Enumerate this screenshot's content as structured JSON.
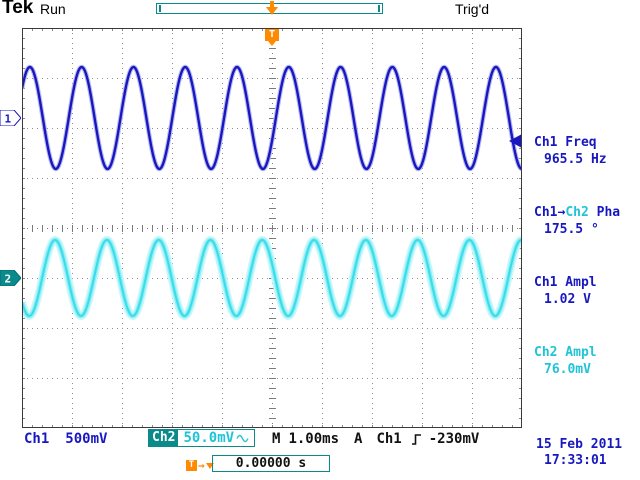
{
  "header": {
    "logo": "Tek",
    "acq_status": "Run",
    "trigger_status": "Trig'd"
  },
  "trigger": {
    "marker": "T"
  },
  "channels": {
    "ch1": {
      "tag": "1"
    },
    "ch2": {
      "tag": "2"
    }
  },
  "measurements": {
    "m1": {
      "label": "Ch1 Freq",
      "value": "965.5 Hz"
    },
    "m2": {
      "src1": "Ch1",
      "arrow": "→",
      "src2": "Ch2",
      "suffix": " Pha",
      "value": "175.5 °"
    },
    "m3": {
      "label": "Ch1 Ampl",
      "value": "1.02 V"
    },
    "m4": {
      "label": "Ch2 Ampl",
      "value": "76.0mV"
    }
  },
  "statusbar": {
    "ch1_label": "Ch1",
    "ch1_scale": "500mV",
    "ch2_label": "Ch2",
    "ch2_scale": "50.0mV",
    "timebase_label": "M",
    "timebase": "1.00ms",
    "trig_label": "A",
    "trig_source": "Ch1",
    "trig_level": "-230mV",
    "date": "15 Feb 2011",
    "time": "17:33:01",
    "delay_marker": "T",
    "delay_arrow": "→",
    "delay_value": "0.00000 s"
  },
  "colors": {
    "ch1": "#1818c0",
    "ch2": "#38dcea",
    "ch2_text": "#20c4d6",
    "teal": "#0a8a8a",
    "orange": "#ff8a00",
    "grid": "#909090"
  },
  "chart_data": {
    "type": "line",
    "title": "",
    "grid": true,
    "x_divisions": 10,
    "y_divisions": 8,
    "seconds_per_div": 0.001,
    "delay_s": 0,
    "series": [
      {
        "name": "Ch1",
        "freq_hz": 965.5,
        "amplitude_v": 1.02,
        "volts_per_div": 0.5,
        "position_div": 2.2,
        "phase_deg": 0
      },
      {
        "name": "Ch2",
        "freq_hz": 965.5,
        "amplitude_v": 0.076,
        "volts_per_div": 0.05,
        "position_div": -1.0,
        "phase_deg": -175.5
      }
    ],
    "trigger": {
      "source": "Ch1",
      "level_v": -0.23,
      "slope": "rising",
      "position": "center"
    },
    "measurements": [
      {
        "name": "Ch1 Freq",
        "value": "965.5 Hz"
      },
      {
        "name": "Ch1→Ch2 Pha",
        "value": "175.5 °"
      },
      {
        "name": "Ch1 Ampl",
        "value": "1.02 V"
      },
      {
        "name": "Ch2 Ampl",
        "value": "76.0mV"
      }
    ]
  }
}
